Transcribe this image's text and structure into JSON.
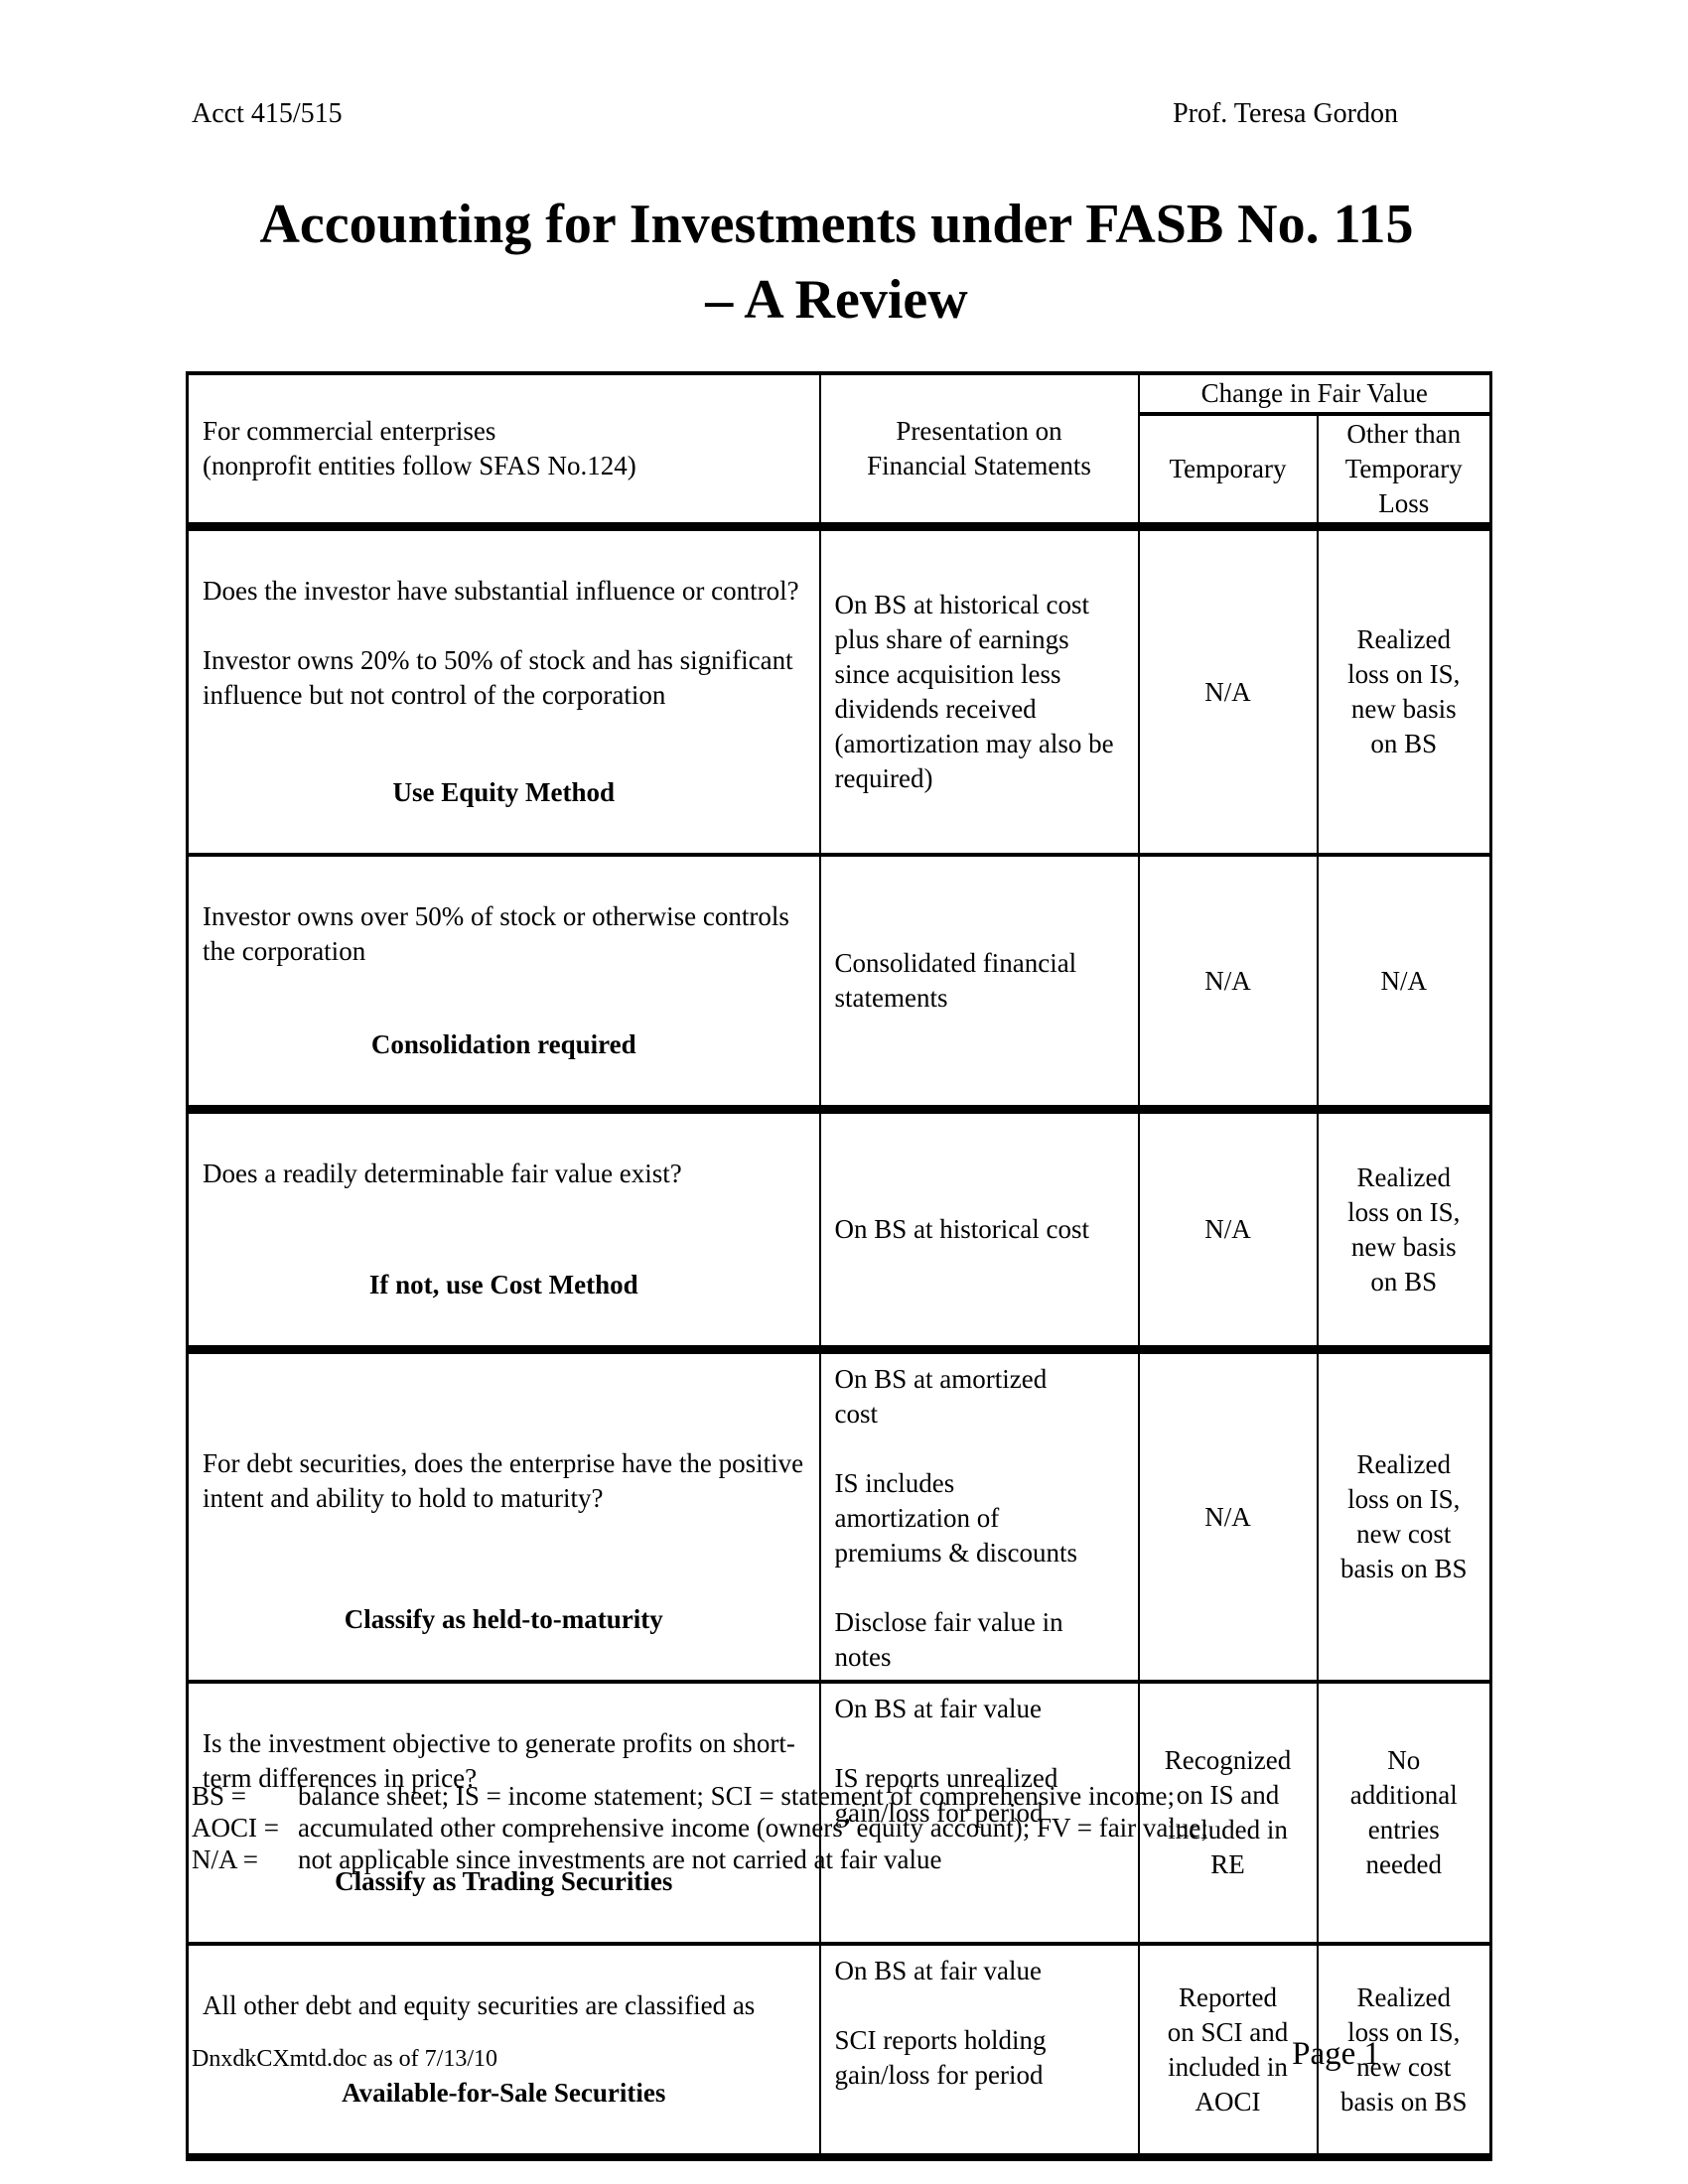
{
  "colors": {
    "ink": "#000000",
    "paper": "#ffffff"
  },
  "page_header": {
    "left": "Acct 415/515",
    "right": "Prof. Teresa Gordon"
  },
  "title": {
    "line1": "Accounting for Investments under FASB No. 115",
    "line2": "– A Review"
  },
  "table": {
    "header": {
      "enterprises": "For commercial enterprises\n(nonprofit entities follow SFAS No.124)",
      "presentation": "Presentation on\nFinancial Statements",
      "change_group": "Change in Fair Value",
      "temporary": "Temporary",
      "other_than_temporary": "Other than\nTemporary\nLoss"
    },
    "rows": [
      {
        "question": "Does the investor have substantial influence or control?\n\nInvestor owns 20% to 50% of stock and has significant influence but not control of the corporation",
        "method": "Use Equity Method",
        "presentation": "On BS at historical cost plus share of earnings since acquisition less dividends received (amortization may also be required)",
        "temporary": "N/A",
        "other_than_temporary": "Realized\nloss on IS,\nnew basis\non BS"
      },
      {
        "question": "Investor owns over 50% of stock or otherwise controls the corporation",
        "method": "Consolidation required",
        "presentation": "Consolidated financial statements",
        "temporary": "N/A",
        "other_than_temporary": "N/A"
      },
      {
        "question": "Does a readily determinable fair value exist?",
        "method": "If not, use Cost Method",
        "presentation": "On BS at historical cost",
        "temporary": "N/A",
        "other_than_temporary": "Realized\nloss on IS,\nnew basis\non BS"
      },
      {
        "question": "For debt securities, does the enterprise have the positive intent and ability to hold to maturity?",
        "method": "Classify as held-to-maturity",
        "presentation": "On BS at amortized\ncost\n\nIS includes\namortization of\npremiums & discounts\n\nDisclose fair value in\nnotes",
        "temporary": "N/A",
        "other_than_temporary": "Realized\nloss on IS,\nnew cost\nbasis on BS"
      },
      {
        "question": "Is the investment objective to generate profits on short-term differences in price?",
        "method": "Classify as Trading Securities",
        "presentation": "On BS at fair value\n\nIS reports unrealized\ngain/loss for period",
        "temporary": "Recognized\non IS and\nincluded in\nRE",
        "other_than_temporary": "No\nadditional\nentries\nneeded"
      },
      {
        "question": "All other debt and equity securities are classified as",
        "method": "Available-for-Sale Securities",
        "presentation": "On BS at fair value\n\nSCI reports holding\ngain/loss for period",
        "temporary": "Reported\non SCI and\nincluded in\nAOCI",
        "other_than_temporary": "Realized\nloss on IS,\nnew cost\nbasis on BS"
      }
    ]
  },
  "legend": [
    {
      "label": "BS =",
      "text": "balance sheet; IS = income statement; SCI = statement of comprehensive income;"
    },
    {
      "label": "AOCI =",
      "text": "accumulated other comprehensive income (owners’ equity account); FV = fair value;"
    },
    {
      "label": "N/A =",
      "text": "not applicable since investments are not carried at fair value"
    }
  ],
  "page_footer": {
    "left": "DnxdkCXmtd.doc as of 7/13/10",
    "right": "Page 1"
  }
}
